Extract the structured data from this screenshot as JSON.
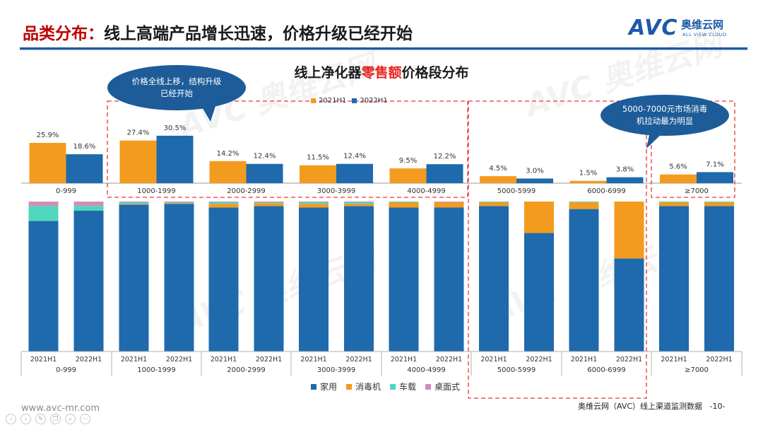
{
  "header": {
    "title_prefix": "品类分布：",
    "title_rest": "线上高端产品增长迅速，价格升级已经开始",
    "logo_avc": "AVC",
    "logo_cn": "奥维云网",
    "logo_en": "ALL VIEW CLOUD"
  },
  "chart_title": {
    "pre": "线上净化器",
    "highlight": "零售额",
    "post": "价格段分布"
  },
  "legend_top": [
    "2021H1",
    "2022H1"
  ],
  "legend_bottom": [
    "家用",
    "消毒机",
    "车载",
    "桌面式"
  ],
  "callouts": {
    "left": "价格全线上移，结构升级已经开始",
    "right": "5000-7000元市场消毒机拉动最为明显"
  },
  "footer": {
    "site": "www.avc-mr.com",
    "source": "奥维云网（AVC）线上渠道监测数据",
    "page": "-10-"
  },
  "colors": {
    "y2021": "#f39b1f",
    "y2022": "#1e6aad",
    "household": "#1e6aad",
    "disinfect": "#f39b1f",
    "vehicle": "#4fd6be",
    "desktop": "#cf8fb7",
    "title_red": "#c00000",
    "highlight_red": "#e8251f",
    "callout": "#1d5c98",
    "dashed_box": "#e53935"
  },
  "chart_data": [
    {
      "type": "bar",
      "categories": [
        "0-999",
        "1000-1999",
        "2000-2999",
        "3000-3999",
        "4000-4999",
        "5000-5999",
        "6000-6999",
        "≥7000"
      ],
      "series": [
        {
          "name": "2021H1",
          "values": [
            25.9,
            27.4,
            14.2,
            11.5,
            9.5,
            4.5,
            1.5,
            5.6
          ],
          "labels": [
            "25.9%",
            "27.4%",
            "14.2%",
            "11.5%",
            "9.5%",
            "4.5%",
            "1.5%",
            "5.6%"
          ]
        },
        {
          "name": "2022H1",
          "values": [
            18.6,
            30.5,
            12.4,
            12.4,
            12.2,
            3.0,
            3.8,
            7.1
          ],
          "labels": [
            "18.6%",
            "30.5%",
            "12.4%",
            "12.4%",
            "12.2%",
            "3.0%",
            "3.8%",
            "7.1%"
          ]
        }
      ]
    },
    {
      "type": "bar",
      "stacked": true,
      "percent": true,
      "categories": [
        "0-999",
        "1000-1999",
        "2000-2999",
        "3000-3999",
        "4000-4999",
        "5000-5999",
        "6000-6999",
        "≥7000"
      ],
      "periods": [
        "2021H1",
        "2022H1"
      ],
      "series": [
        {
          "name": "家用",
          "values": [
            [
              87,
              94
            ],
            [
              98,
              98.5
            ],
            [
              96,
              97
            ],
            [
              96,
              97
            ],
            [
              96,
              96
            ],
            [
              97,
              79
            ],
            [
              95,
              62
            ],
            [
              97,
              97
            ]
          ]
        },
        {
          "name": "消毒机",
          "values": [
            [
              0,
              0
            ],
            [
              0.5,
              0.5
            ],
            [
              2.5,
              2
            ],
            [
              2.5,
              1.5
            ],
            [
              3.5,
              3.5
            ],
            [
              2.5,
              21
            ],
            [
              4.5,
              38
            ],
            [
              2.5,
              2.5
            ]
          ]
        },
        {
          "name": "车载",
          "values": [
            [
              10,
              3
            ],
            [
              1,
              0.5
            ],
            [
              1,
              0.5
            ],
            [
              1,
              1
            ],
            [
              0.5,
              0
            ],
            [
              0.5,
              0
            ],
            [
              0.5,
              0
            ],
            [
              0.5,
              0.5
            ]
          ]
        },
        {
          "name": "桌面式",
          "values": [
            [
              3,
              3
            ],
            [
              0.5,
              0.5
            ],
            [
              0.5,
              0.5
            ],
            [
              0.5,
              0.5
            ],
            [
              0,
              0.5
            ],
            [
              0,
              0
            ],
            [
              0,
              0
            ],
            [
              0,
              0
            ]
          ]
        }
      ]
    }
  ]
}
